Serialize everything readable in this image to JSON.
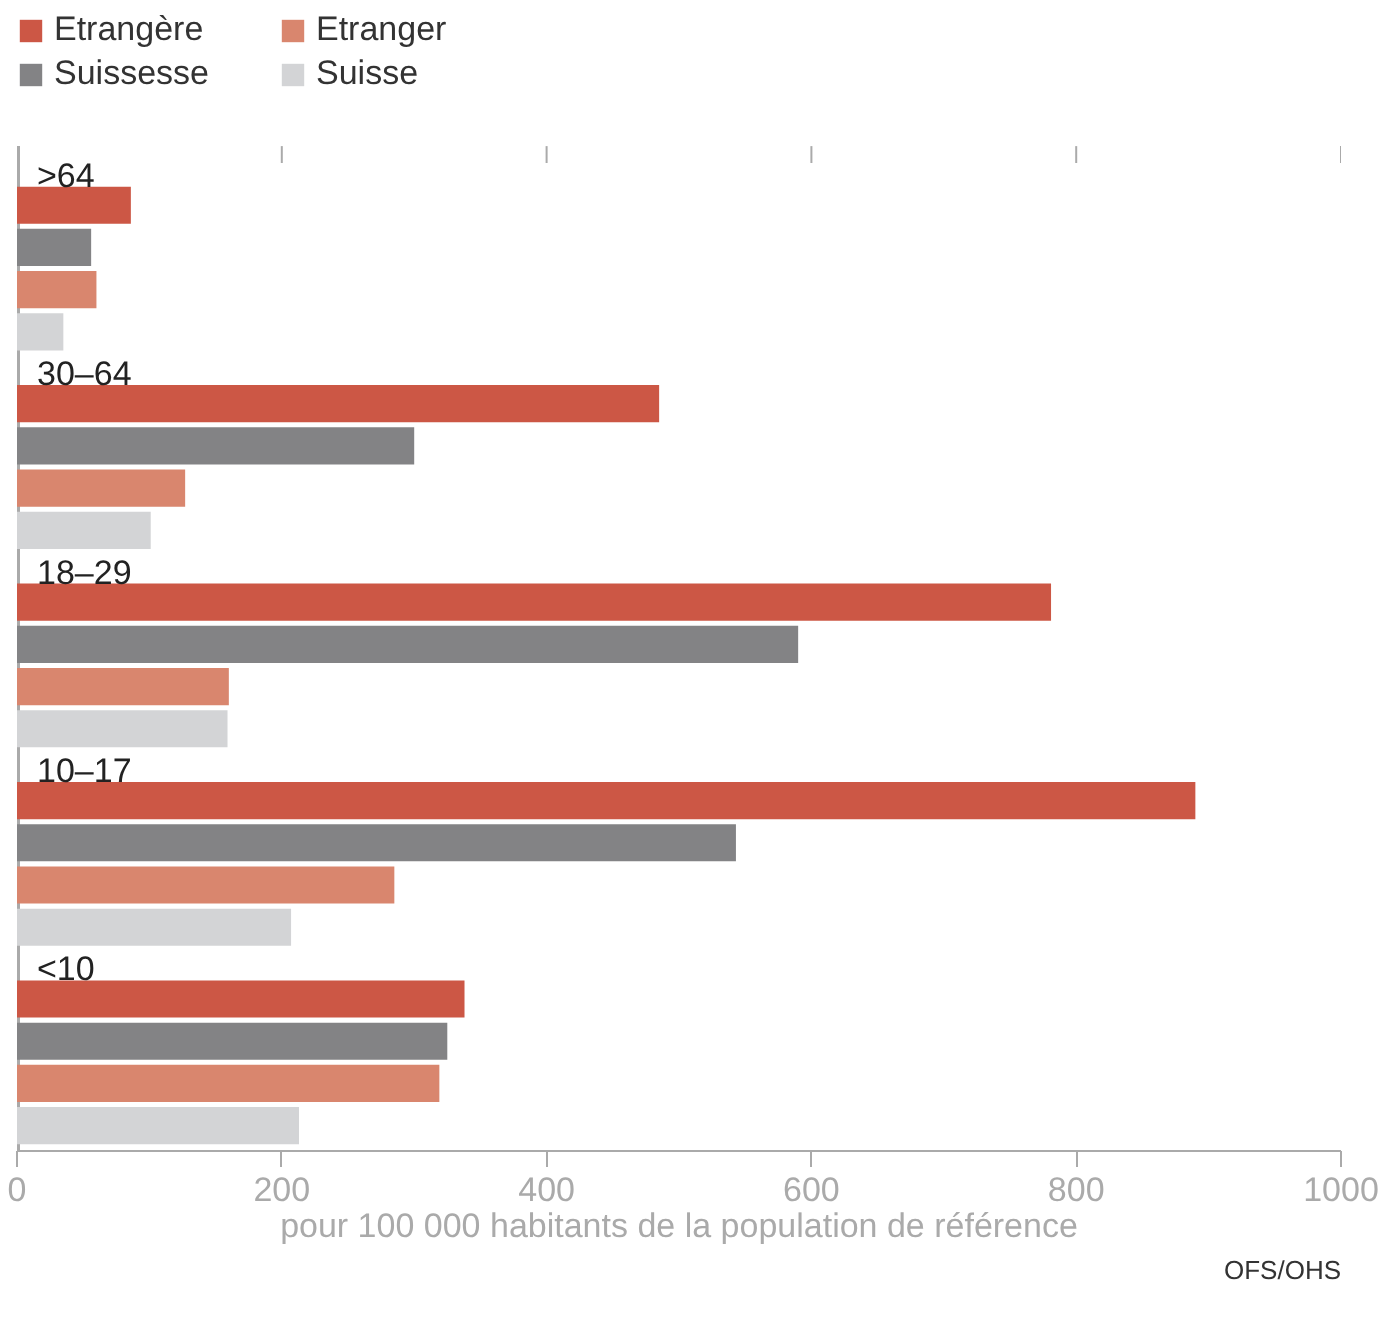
{
  "chart_data": {
    "type": "bar",
    "orientation": "horizontal",
    "xlabel": "pour 100 000 habitants de la population de référence",
    "categories": [
      ">64",
      "30–64",
      "18–29",
      "10–17",
      "<10"
    ],
    "series": [
      {
        "name": "Etrangère",
        "color": "#cc5745",
        "values": [
          86,
          485,
          781,
          890,
          338
        ]
      },
      {
        "name": "Suissesse",
        "color": "#838385",
        "values": [
          56,
          300,
          590,
          543,
          325
        ]
      },
      {
        "name": "Etranger",
        "color": "#d9866e",
        "values": [
          60,
          127,
          160,
          285,
          319
        ]
      },
      {
        "name": "Suisse",
        "color": "#d3d4d6",
        "values": [
          35,
          101,
          159,
          207,
          213
        ]
      }
    ],
    "xlim": [
      0,
      1000
    ],
    "xticks": [
      0,
      200,
      400,
      600,
      800,
      1000
    ],
    "legend": "top left",
    "annotations": [
      "OFS/OHS"
    ]
  }
}
